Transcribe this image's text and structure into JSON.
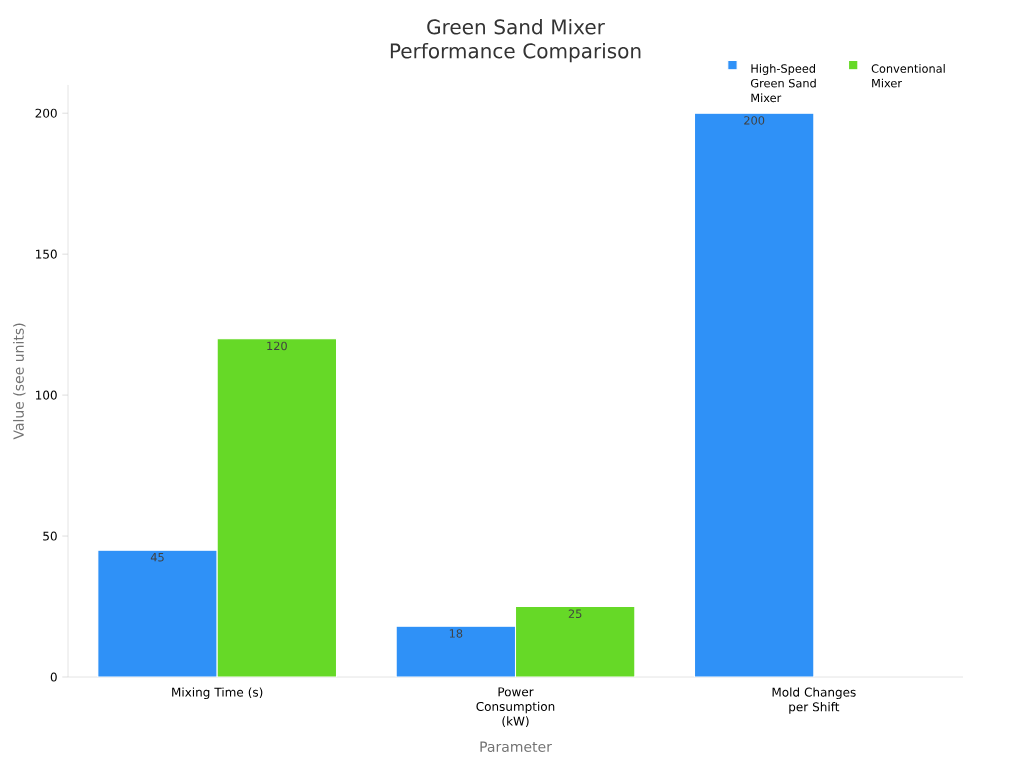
{
  "chart_data": {
    "type": "bar",
    "title": "Green Sand Mixer Performance Comparison",
    "xlabel": "Parameter",
    "ylabel": "Value (see units)",
    "categories": [
      "Mixing Time (s)",
      "Power Consumption (kW)",
      "Mold Changes per Shift"
    ],
    "series": [
      {
        "name": "High-Speed Green Sand Mixer",
        "color": "#2f91f7",
        "values": [
          45,
          18,
          200
        ]
      },
      {
        "name": "Conventional Mixer",
        "color": "#66d927",
        "values": [
          120,
          25,
          null
        ]
      }
    ],
    "ylim": [
      0,
      210
    ],
    "yticks": [
      0,
      50,
      100,
      150,
      200
    ],
    "data_labels": true,
    "legend": "top right",
    "grid": false
  }
}
